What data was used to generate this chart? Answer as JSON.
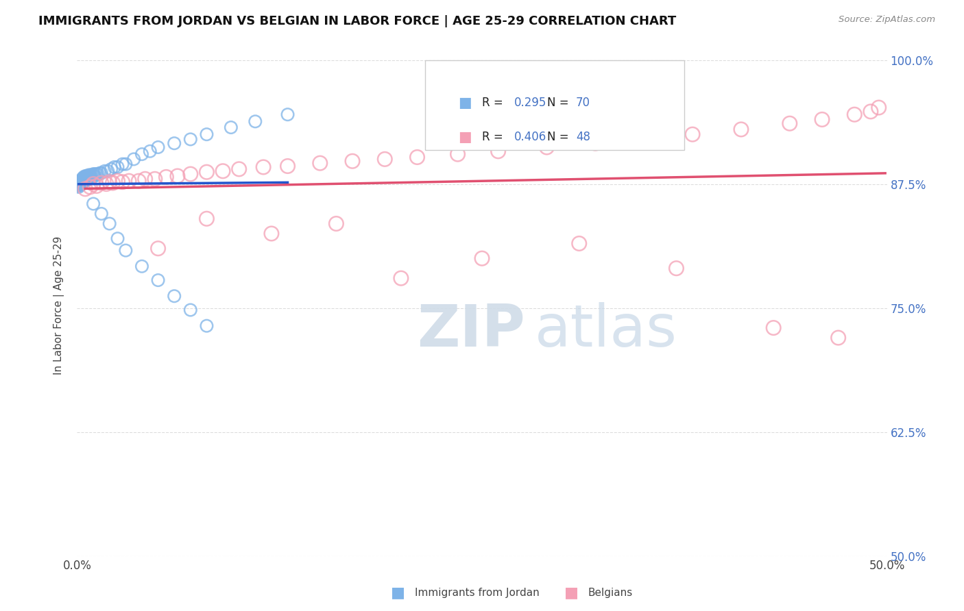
{
  "title": "IMMIGRANTS FROM JORDAN VS BELGIAN IN LABOR FORCE | AGE 25-29 CORRELATION CHART",
  "source": "Source: ZipAtlas.com",
  "ylabel": "In Labor Force | Age 25-29",
  "xlim": [
    0.0,
    0.5
  ],
  "ylim": [
    0.5,
    1.005
  ],
  "yticks": [
    0.5,
    0.625,
    0.75,
    0.875,
    1.0
  ],
  "ytick_labels": [
    "50.0%",
    "62.5%",
    "75.0%",
    "87.5%",
    "100.0%"
  ],
  "jordan_R": 0.295,
  "jordan_N": 70,
  "belgian_R": 0.406,
  "belgian_N": 48,
  "jordan_color": "#7eb3e8",
  "belgian_color": "#f4a0b5",
  "jordan_line_color": "#2255cc",
  "belgian_line_color": "#e05070",
  "grid_color": "#dddddd",
  "background_color": "#ffffff",
  "legend_label_jordan": "Immigrants from Jordan",
  "legend_label_belgian": "Belgians",
  "jordan_x": [
    0.001,
    0.001,
    0.001,
    0.001,
    0.001,
    0.002,
    0.002,
    0.002,
    0.002,
    0.002,
    0.003,
    0.003,
    0.003,
    0.003,
    0.003,
    0.003,
    0.004,
    0.004,
    0.004,
    0.004,
    0.005,
    0.005,
    0.005,
    0.005,
    0.006,
    0.006,
    0.006,
    0.007,
    0.007,
    0.007,
    0.008,
    0.008,
    0.008,
    0.009,
    0.009,
    0.01,
    0.01,
    0.011,
    0.011,
    0.012,
    0.013,
    0.014,
    0.015,
    0.017,
    0.019,
    0.021,
    0.023,
    0.025,
    0.028,
    0.03,
    0.035,
    0.04,
    0.045,
    0.05,
    0.06,
    0.07,
    0.08,
    0.095,
    0.11,
    0.13,
    0.02,
    0.025,
    0.03,
    0.04,
    0.05,
    0.06,
    0.07,
    0.08,
    0.01,
    0.015
  ],
  "jordan_y": [
    0.876,
    0.875,
    0.874,
    0.873,
    0.872,
    0.878,
    0.877,
    0.876,
    0.875,
    0.874,
    0.88,
    0.879,
    0.878,
    0.877,
    0.876,
    0.875,
    0.882,
    0.881,
    0.88,
    0.878,
    0.883,
    0.882,
    0.88,
    0.878,
    0.883,
    0.882,
    0.88,
    0.884,
    0.882,
    0.88,
    0.884,
    0.883,
    0.881,
    0.884,
    0.882,
    0.885,
    0.883,
    0.885,
    0.883,
    0.885,
    0.885,
    0.886,
    0.886,
    0.888,
    0.888,
    0.89,
    0.892,
    0.892,
    0.895,
    0.895,
    0.9,
    0.905,
    0.908,
    0.912,
    0.916,
    0.92,
    0.925,
    0.932,
    0.938,
    0.945,
    0.835,
    0.82,
    0.808,
    0.792,
    0.778,
    0.762,
    0.748,
    0.732,
    0.855,
    0.845
  ],
  "belgian_x": [
    0.005,
    0.008,
    0.01,
    0.012,
    0.015,
    0.018,
    0.02,
    0.022,
    0.025,
    0.028,
    0.032,
    0.038,
    0.042,
    0.048,
    0.055,
    0.062,
    0.07,
    0.08,
    0.09,
    0.1,
    0.115,
    0.13,
    0.15,
    0.17,
    0.19,
    0.21,
    0.235,
    0.26,
    0.29,
    0.32,
    0.35,
    0.38,
    0.41,
    0.44,
    0.46,
    0.48,
    0.49,
    0.495,
    0.05,
    0.08,
    0.12,
    0.16,
    0.2,
    0.25,
    0.31,
    0.37,
    0.43,
    0.47
  ],
  "belgian_y": [
    0.87,
    0.872,
    0.875,
    0.873,
    0.876,
    0.875,
    0.877,
    0.876,
    0.878,
    0.877,
    0.878,
    0.878,
    0.88,
    0.88,
    0.882,
    0.883,
    0.885,
    0.887,
    0.888,
    0.89,
    0.892,
    0.893,
    0.896,
    0.898,
    0.9,
    0.902,
    0.905,
    0.908,
    0.912,
    0.916,
    0.92,
    0.925,
    0.93,
    0.936,
    0.94,
    0.945,
    0.948,
    0.952,
    0.81,
    0.84,
    0.825,
    0.835,
    0.78,
    0.8,
    0.815,
    0.79,
    0.73,
    0.72
  ]
}
